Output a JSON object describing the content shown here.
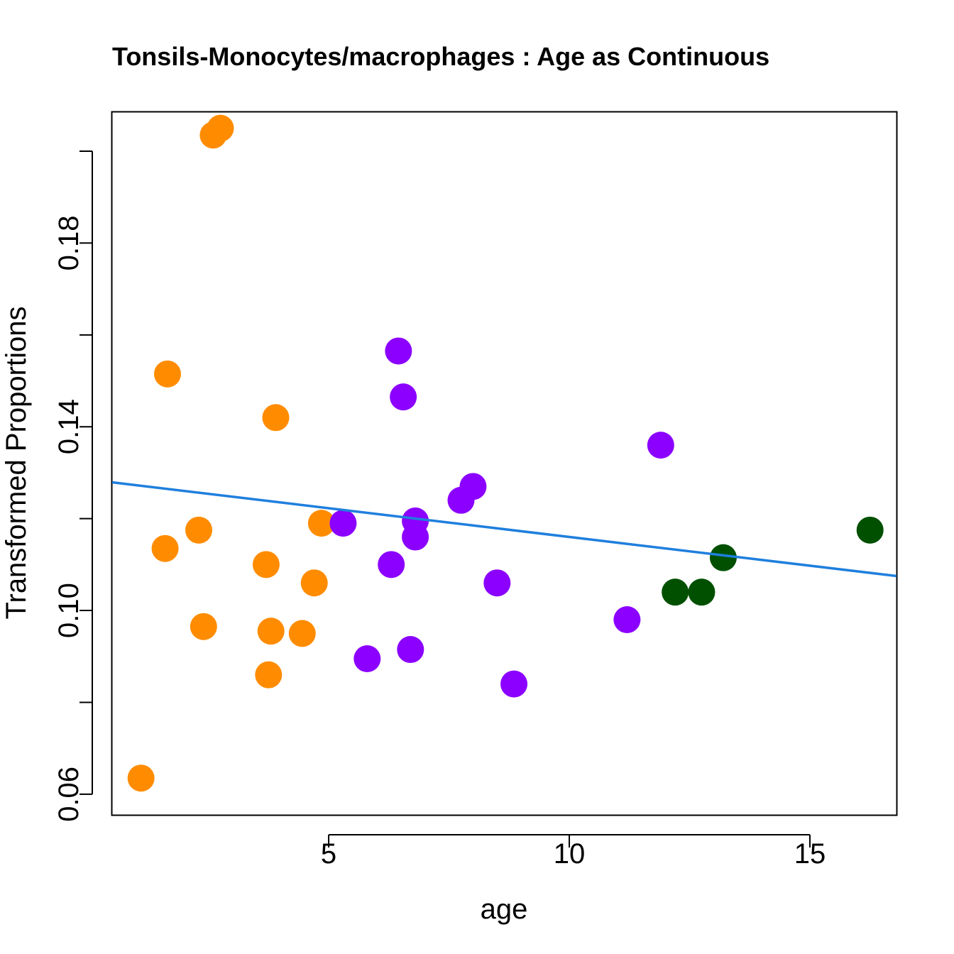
{
  "chart_data": {
    "type": "scatter",
    "title": "Tonsils-Monocytes/macrophages : Age as Continuous",
    "xlabel": "age",
    "ylabel": "Transformed Proportions",
    "xlim": [
      0.5,
      16.8
    ],
    "ylim": [
      0.0555,
      0.2085
    ],
    "x_ticks": [
      5,
      10,
      15
    ],
    "x_tick_labels": [
      "5",
      "10",
      "15"
    ],
    "y_ticks": [
      0.06,
      0.08,
      0.1,
      0.12,
      0.14,
      0.16,
      0.18,
      0.2
    ],
    "y_tick_labels": [
      "0.06",
      "",
      "0.10",
      "",
      "0.14",
      "",
      "0.18",
      ""
    ],
    "regression_line": {
      "x": [
        0.5,
        16.8
      ],
      "y": [
        0.1279,
        0.1075
      ],
      "color": "#1f7fdd"
    },
    "series": [
      {
        "name": "orange group",
        "color": "#ff8c00",
        "points": [
          [
            1.1,
            0.0635
          ],
          [
            1.6,
            0.1135
          ],
          [
            1.65,
            0.1515
          ],
          [
            2.3,
            0.1175
          ],
          [
            2.4,
            0.0965
          ],
          [
            2.6,
            0.2035
          ],
          [
            2.75,
            0.205
          ],
          [
            3.7,
            0.11
          ],
          [
            3.75,
            0.086
          ],
          [
            3.8,
            0.0955
          ],
          [
            3.9,
            0.142
          ],
          [
            4.45,
            0.095
          ],
          [
            4.7,
            0.106
          ],
          [
            4.85,
            0.119
          ]
        ]
      },
      {
        "name": "purple group",
        "color": "#8b00ff",
        "points": [
          [
            5.3,
            0.119
          ],
          [
            5.8,
            0.0895
          ],
          [
            6.3,
            0.11
          ],
          [
            6.45,
            0.1565
          ],
          [
            6.55,
            0.1465
          ],
          [
            6.7,
            0.0915
          ],
          [
            6.8,
            0.116
          ],
          [
            6.8,
            0.1195
          ],
          [
            7.75,
            0.124
          ],
          [
            8.0,
            0.127
          ],
          [
            8.5,
            0.106
          ],
          [
            8.85,
            0.084
          ],
          [
            11.2,
            0.098
          ],
          [
            11.9,
            0.136
          ]
        ]
      },
      {
        "name": "green group",
        "color": "#005000",
        "points": [
          [
            12.2,
            0.104
          ],
          [
            12.75,
            0.104
          ],
          [
            13.2,
            0.1115
          ],
          [
            16.25,
            0.1175
          ]
        ]
      }
    ]
  }
}
